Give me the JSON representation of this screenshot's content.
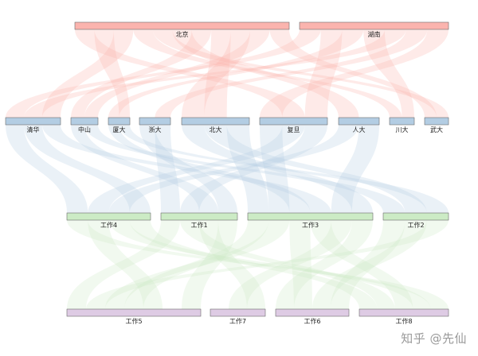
{
  "colors": {
    "level0": "#fbb4ae",
    "level1": "#b3cde3",
    "level2": "#ccebc5",
    "level3": "#decbe4",
    "flow0": "#fbb4ae",
    "flow1": "#b3cde3",
    "flow2": "#ccebc5"
  },
  "levels": [
    [
      {
        "id": "beijing",
        "label": "北京"
      },
      {
        "id": "hunan",
        "label": "湖南"
      }
    ],
    [
      {
        "id": "qinghua",
        "label": "清华"
      },
      {
        "id": "zhongshan",
        "label": "中山"
      },
      {
        "id": "xiada",
        "label": "厦大"
      },
      {
        "id": "zheda",
        "label": "浙大"
      },
      {
        "id": "beida",
        "label": "北大"
      },
      {
        "id": "fudan",
        "label": "复旦"
      },
      {
        "id": "renda",
        "label": "人大"
      },
      {
        "id": "chuanda",
        "label": "川大"
      },
      {
        "id": "wuda",
        "label": "武大"
      }
    ],
    [
      {
        "id": "job4",
        "label": "工作4"
      },
      {
        "id": "job1",
        "label": "工作1"
      },
      {
        "id": "job3",
        "label": "工作3"
      },
      {
        "id": "job2",
        "label": "工作2"
      }
    ],
    [
      {
        "id": "job5",
        "label": "工作5"
      },
      {
        "id": "job7",
        "label": "工作7"
      },
      {
        "id": "job6",
        "label": "工作6"
      },
      {
        "id": "job8",
        "label": "工作8"
      }
    ]
  ],
  "watermark": "知乎 @先仙"
}
